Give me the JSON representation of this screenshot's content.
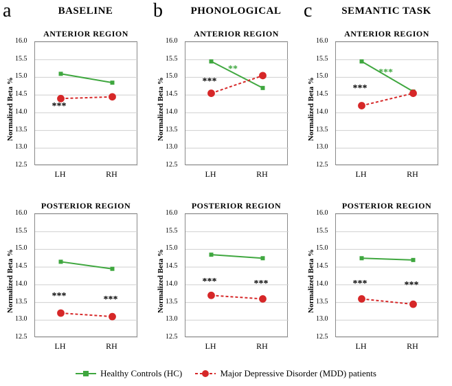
{
  "global": {
    "ylabel": "Normalized Beta %",
    "x_categories": [
      "LH",
      "RH"
    ],
    "ylim": [
      12.5,
      16.0
    ],
    "yticks": [
      12.5,
      13.0,
      13.5,
      14.0,
      14.5,
      15.0,
      15.5,
      16.0
    ],
    "hc_color": "#3fa73f",
    "mdd_color": "#d62728",
    "hc_marker": "square",
    "mdd_marker": "circle",
    "mdd_dash": "4,3",
    "grid_color": "#cfcfcf",
    "line_width": 2,
    "marker_size": 6,
    "label_fontsize": 11,
    "tick_fontsize": 10,
    "title_fontsize": 12,
    "col_title_fontsize": 15,
    "background": "#ffffff"
  },
  "legend": {
    "hc_label": "Healthy Controls (HC)",
    "mdd_label": "Major Depressive Disorder (MDD) patients"
  },
  "columns": [
    {
      "letter": "a",
      "title": "BASELINE",
      "rows": [
        {
          "subtitle": "ANTERIOR REGION",
          "hc": [
            15.1,
            14.85
          ],
          "mdd": [
            14.4,
            14.45
          ],
          "sig": [
            {
              "text": "***",
              "x": 0,
              "y": 14.15,
              "color": "#000000"
            }
          ]
        },
        {
          "subtitle": "POSTERIOR REGION",
          "hc": [
            14.65,
            14.45
          ],
          "mdd": [
            13.2,
            13.1
          ],
          "sig": [
            {
              "text": "***",
              "x": 0,
              "y": 13.65,
              "color": "#000000"
            },
            {
              "text": "***",
              "x": 1,
              "y": 13.55,
              "color": "#000000"
            }
          ]
        }
      ]
    },
    {
      "letter": "b",
      "title": "PHONOLOGICAL",
      "rows": [
        {
          "subtitle": "ANTERIOR REGION",
          "hc": [
            15.45,
            14.7
          ],
          "mdd": [
            14.55,
            15.05
          ],
          "sig": [
            {
              "text": "***",
              "x": 0,
              "y": 14.85,
              "color": "#000000"
            },
            {
              "text": "**",
              "x": 0.5,
              "y": 15.2,
              "color": "#3fa73f"
            }
          ]
        },
        {
          "subtitle": "POSTERIOR REGION",
          "hc": [
            14.85,
            14.75
          ],
          "mdd": [
            13.7,
            13.6
          ],
          "sig": [
            {
              "text": "***",
              "x": 0,
              "y": 14.05,
              "color": "#000000"
            },
            {
              "text": "***",
              "x": 1,
              "y": 14.0,
              "color": "#000000"
            }
          ]
        }
      ]
    },
    {
      "letter": "c",
      "title": "SEMANTIC TASK",
      "rows": [
        {
          "subtitle": "ANTERIOR REGION",
          "hc": [
            15.45,
            14.6
          ],
          "mdd": [
            14.2,
            14.55
          ],
          "sig": [
            {
              "text": "***",
              "x": 0,
              "y": 14.65,
              "color": "#000000"
            },
            {
              "text": "***",
              "x": 0.5,
              "y": 15.1,
              "color": "#3fa73f"
            }
          ]
        },
        {
          "subtitle": "POSTERIOR REGION",
          "hc": [
            14.75,
            14.7
          ],
          "mdd": [
            13.6,
            13.45
          ],
          "sig": [
            {
              "text": "***",
              "x": 0,
              "y": 14.0,
              "color": "#000000"
            },
            {
              "text": "***",
              "x": 1,
              "y": 13.95,
              "color": "#000000"
            }
          ]
        }
      ]
    }
  ]
}
